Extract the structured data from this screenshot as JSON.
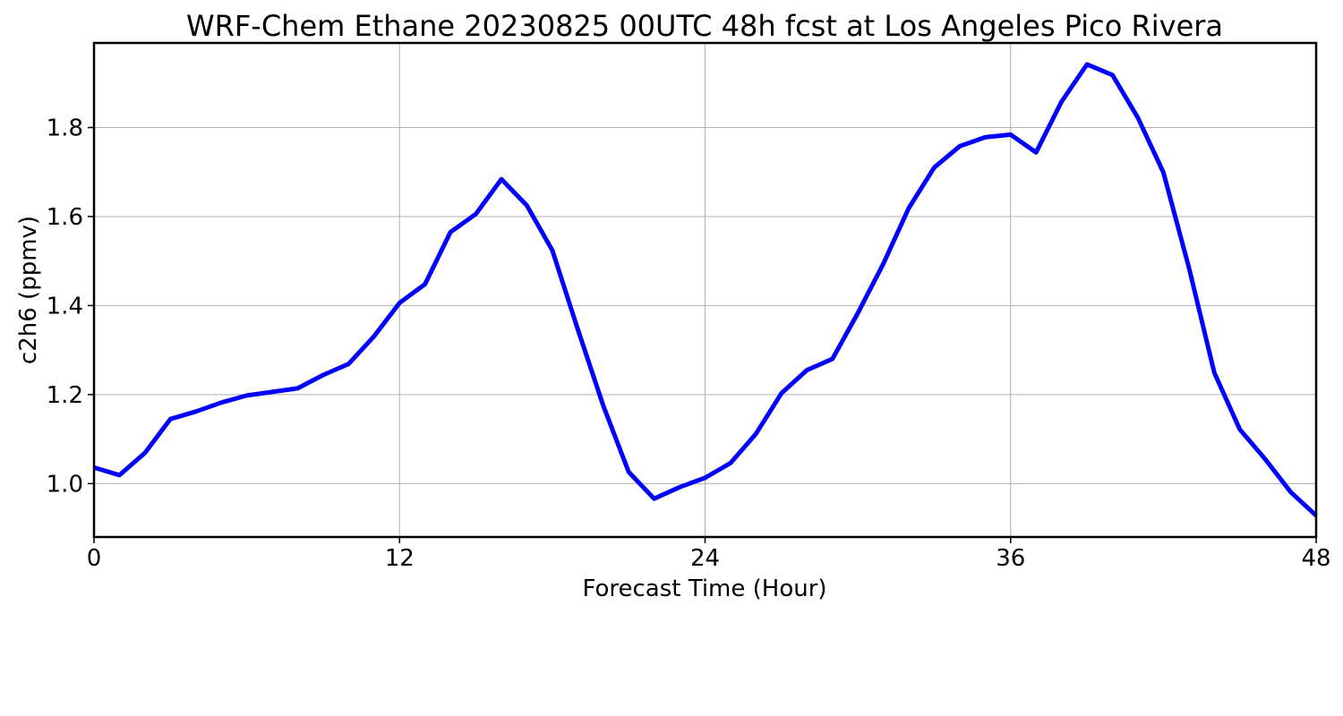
{
  "chart_data": {
    "type": "line",
    "title": "WRF-Chem Ethane  20230825 00UTC 48h fcst at Los Angeles Pico Rivera",
    "xlabel": "Forecast Time (Hour)",
    "ylabel": "c2h6  (ppmv)",
    "xlim": [
      0,
      48
    ],
    "ylim": [
      0.88,
      1.99
    ],
    "xticks": [
      0,
      12,
      24,
      36,
      48
    ],
    "yticks": [
      1.0,
      1.2,
      1.4,
      1.6,
      1.8
    ],
    "xtick_labels": [
      "0",
      "12",
      "24",
      "36",
      "48"
    ],
    "ytick_labels": [
      "1.0",
      "1.2",
      "1.4",
      "1.6",
      "1.8"
    ],
    "grid": true,
    "series": [
      {
        "color": "#0000ff",
        "x": [
          0,
          1,
          2,
          3,
          4,
          5,
          6,
          7,
          8,
          9,
          10,
          11,
          12,
          13,
          14,
          15,
          16,
          17,
          18,
          19,
          20,
          21,
          22,
          23,
          24,
          25,
          26,
          27,
          28,
          29,
          30,
          31,
          32,
          33,
          34,
          35,
          36,
          37,
          38,
          39,
          40,
          41,
          42,
          43,
          44,
          45,
          46,
          47,
          48
        ],
        "values": [
          1.036,
          1.019,
          1.069,
          1.145,
          1.162,
          1.182,
          1.198,
          1.206,
          1.214,
          1.244,
          1.269,
          1.331,
          1.406,
          1.448,
          1.565,
          1.606,
          1.684,
          1.625,
          1.524,
          1.347,
          1.175,
          1.026,
          0.966,
          0.992,
          1.013,
          1.046,
          1.112,
          1.203,
          1.255,
          1.28,
          1.383,
          1.494,
          1.619,
          1.71,
          1.758,
          1.778,
          1.784,
          1.744,
          1.858,
          1.942,
          1.918,
          1.822,
          1.699,
          1.486,
          1.249,
          1.122,
          1.055,
          0.981,
          0.928
        ]
      }
    ]
  }
}
